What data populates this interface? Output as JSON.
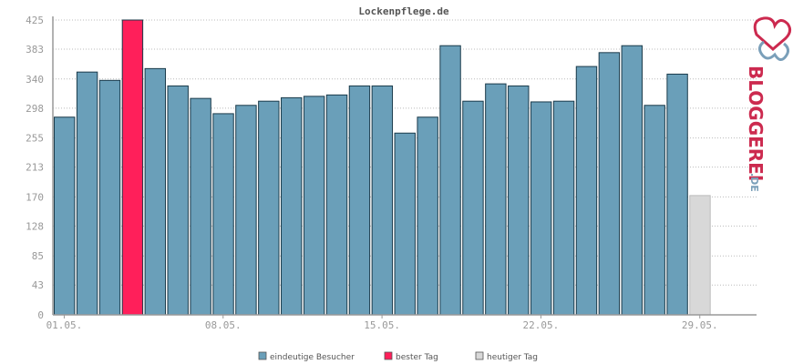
{
  "chart_data": {
    "type": "bar",
    "title": "Lockenpflege.de",
    "yticks": [
      0,
      43,
      85,
      128,
      170,
      213,
      255,
      298,
      340,
      383,
      425
    ],
    "ylim": [
      0,
      425
    ],
    "grid": true,
    "x_ticks": [
      {
        "label": "01.05.",
        "index": 0
      },
      {
        "label": "08.05.",
        "index": 7
      },
      {
        "label": "15.05.",
        "index": 14
      },
      {
        "label": "22.05.",
        "index": 21
      },
      {
        "label": "29.05.",
        "index": 28
      }
    ],
    "values": [
      285,
      350,
      338,
      425,
      355,
      330,
      312,
      290,
      302,
      308,
      313,
      315,
      317,
      330,
      330,
      262,
      285,
      388,
      308,
      333,
      330,
      307,
      308,
      358,
      378,
      388,
      302,
      347,
      172
    ],
    "best_index": 3,
    "today_index": 28,
    "days_total": 31,
    "legend": [
      {
        "label": "eindeutige Besucher",
        "color": "#6a9fb9"
      },
      {
        "label": "bester Tag",
        "color": "#ff1f5a"
      },
      {
        "label": "heutiger Tag",
        "color": "#d8d8d8"
      }
    ],
    "legend_position": "bottom-center",
    "colors": {
      "bar": "#6a9fb9",
      "best": "#ff1f5a",
      "today": "#d8d8d8",
      "bar_stroke": "#1a3a4a"
    }
  },
  "logo": {
    "text": "BLOGGEREI",
    "suffix": ".DE",
    "colors": {
      "main": "#cc2a4f",
      "suffix": "#7a9fb9"
    }
  }
}
